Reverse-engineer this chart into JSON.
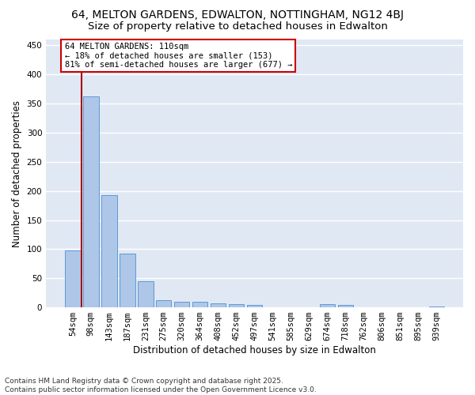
{
  "title": "64, MELTON GARDENS, EDWALTON, NOTTINGHAM, NG12 4BJ",
  "subtitle": "Size of property relative to detached houses in Edwalton",
  "xlabel": "Distribution of detached houses by size in Edwalton",
  "ylabel": "Number of detached properties",
  "categories": [
    "54sqm",
    "98sqm",
    "143sqm",
    "187sqm",
    "231sqm",
    "275sqm",
    "320sqm",
    "364sqm",
    "408sqm",
    "452sqm",
    "497sqm",
    "541sqm",
    "585sqm",
    "629sqm",
    "674sqm",
    "718sqm",
    "762sqm",
    "806sqm",
    "851sqm",
    "895sqm",
    "939sqm"
  ],
  "values": [
    98,
    363,
    193,
    92,
    45,
    13,
    10,
    10,
    7,
    5,
    4,
    0,
    0,
    0,
    5,
    4,
    0,
    0,
    0,
    0,
    2
  ],
  "bar_color": "#aec6e8",
  "bar_edge_color": "#5b9bd5",
  "background_color": "#e0e8f4",
  "grid_color": "#ffffff",
  "annotation_box_text": "64 MELTON GARDENS: 110sqm\n← 18% of detached houses are smaller (153)\n81% of semi-detached houses are larger (677) →",
  "vline_color": "#aa0000",
  "vline_x_index": 0.5,
  "ylim": [
    0,
    460
  ],
  "yticks": [
    0,
    50,
    100,
    150,
    200,
    250,
    300,
    350,
    400,
    450
  ],
  "footer_line1": "Contains HM Land Registry data © Crown copyright and database right 2025.",
  "footer_line2": "Contains public sector information licensed under the Open Government Licence v3.0.",
  "title_fontsize": 10,
  "subtitle_fontsize": 9.5,
  "axis_label_fontsize": 8.5,
  "tick_fontsize": 7.5,
  "annotation_fontsize": 7.5,
  "footer_fontsize": 6.5
}
